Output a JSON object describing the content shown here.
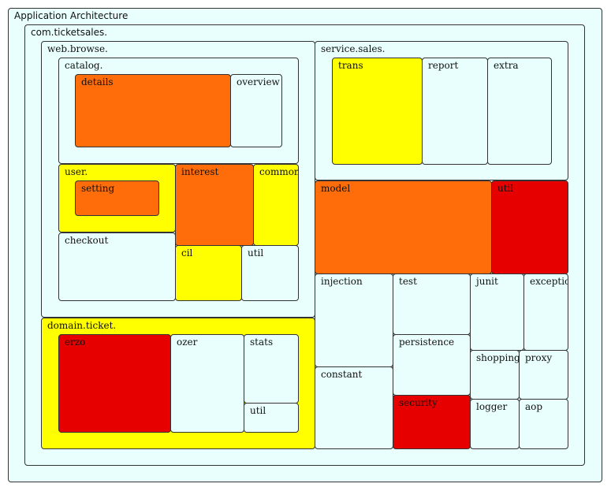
{
  "colors": {
    "pale": "#e8fffe",
    "orange": "#ff6d0a",
    "yellow": "#ffff00",
    "red": "#e60000"
  },
  "root": {
    "label": "Application Architecture"
  },
  "com_ticketsales": {
    "label": "com.ticketsales."
  },
  "web_browse": {
    "label": "web.browse.",
    "catalog": {
      "label": "catalog.",
      "details": "details",
      "overview": "overview"
    },
    "user": {
      "label": "user.",
      "setting": "setting"
    },
    "interest": "interest",
    "common": "common",
    "checkout": "checkout",
    "cil": "cil",
    "util": "util"
  },
  "service_sales": {
    "label": "service.sales.",
    "trans": "trans",
    "report": "report",
    "extra": "extra"
  },
  "domain_ticket": {
    "label": "domain.ticket.",
    "erzo": "erzo",
    "ozer": "ozer",
    "stats": "stats",
    "util": "util"
  },
  "misc": {
    "model": "model",
    "util": "util",
    "injection": "injection",
    "test": "test",
    "junit": "junit",
    "exception": "exception",
    "persistence": "persistence",
    "shoppinglist": "shoppinglist",
    "proxy": "proxy",
    "constant": "constant",
    "security": "security",
    "logger": "logger",
    "aop": "aop"
  }
}
